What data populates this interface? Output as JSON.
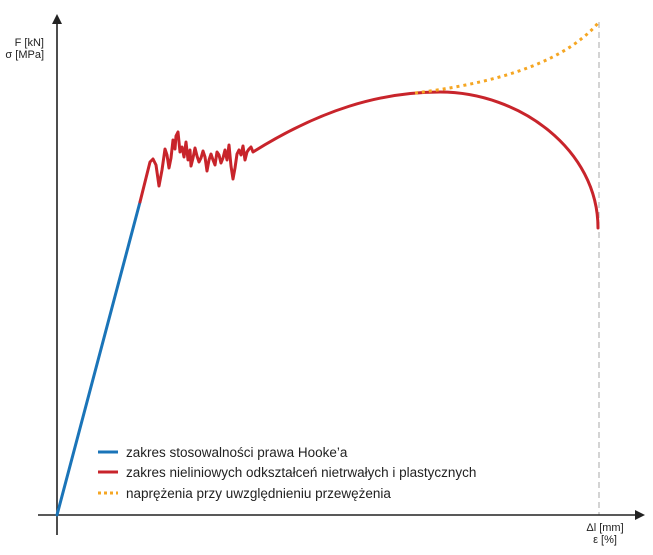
{
  "axes": {
    "y_label_line1": "F [kN]",
    "y_label_line2": "σ [MPa]",
    "x_label_line1": "Δl [mm]",
    "x_label_line2": "ε [%]"
  },
  "legend": [
    {
      "label": "zakres stosowalności prawa Hooke’a",
      "color": "#1a74b8",
      "style": "solid"
    },
    {
      "label": "zakres nieliniowych odkształceń nietrwałych i plastycznych",
      "color": "#c8242b",
      "style": "solid"
    },
    {
      "label": "naprężenia przy uwzględnieniu przewężenia",
      "color": "#f5a623",
      "style": "dotted"
    }
  ],
  "colors": {
    "axis": "#222222",
    "hooke": "#1a74b8",
    "plastic": "#c8242b",
    "true_stress": "#f5a623",
    "guide": "#aaaaaa"
  }
}
